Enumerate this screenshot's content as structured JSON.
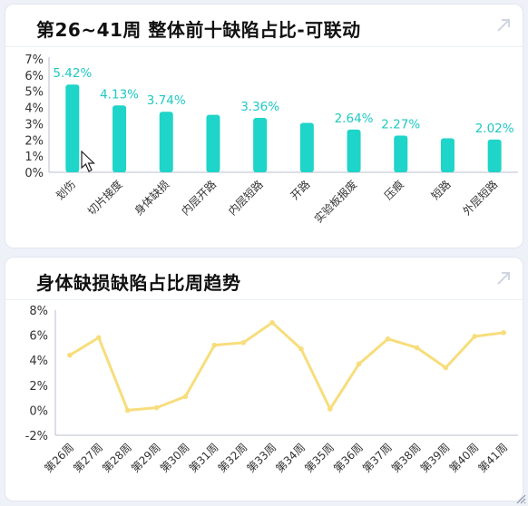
{
  "card1": {
    "title": "第26~41周 整体前十缺陷占比-可联动"
  },
  "card2": {
    "title": "身体缺损缺陷占比周趋势"
  },
  "chart_data": [
    {
      "type": "bar",
      "categories": [
        "划伤",
        "切片接度",
        "身体缺损",
        "内层开路",
        "内层短路",
        "开路",
        "实验板报废",
        "压痕",
        "短路",
        "外层短路"
      ],
      "values": [
        5.42,
        4.13,
        3.74,
        3.55,
        3.36,
        3.05,
        2.64,
        2.27,
        2.1,
        2.02
      ],
      "data_labels": [
        "5.42%",
        "4.13%",
        "3.74%",
        "",
        "3.36%",
        "",
        "2.64%",
        "2.27%",
        "",
        "2.02%"
      ],
      "y_ticks": [
        "0%",
        "1%",
        "2%",
        "3%",
        "4%",
        "5%",
        "6%",
        "7%"
      ],
      "ylim": [
        0,
        7
      ],
      "color": "#1fd4c8",
      "label_color": "#1ec9c2"
    },
    {
      "type": "line",
      "categories": [
        "第26周",
        "第27周",
        "第28周",
        "第29周",
        "第30周",
        "第31周",
        "第32周",
        "第33周",
        "第34周",
        "第35周",
        "第36周",
        "第37周",
        "第38周",
        "第39周",
        "第40周",
        "第41周"
      ],
      "values": [
        4.4,
        5.8,
        0.0,
        0.2,
        1.1,
        5.2,
        5.4,
        7.0,
        4.9,
        0.1,
        3.7,
        5.7,
        5.0,
        3.4,
        5.9,
        6.2
      ],
      "y_ticks": [
        "-2%",
        "0%",
        "2%",
        "4%",
        "6%",
        "8%"
      ],
      "ylim": [
        -2,
        8
      ],
      "color": "#f7dd7c"
    }
  ]
}
